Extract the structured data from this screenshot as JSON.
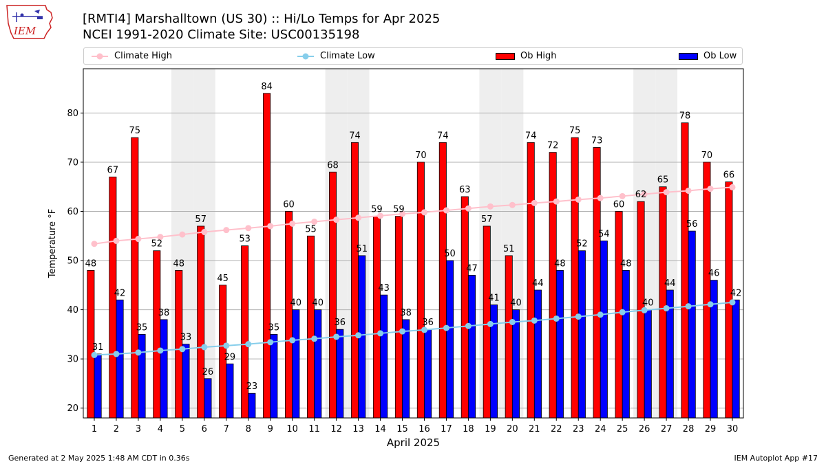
{
  "header": {
    "logo_text": "IEM",
    "title_line1": "[RMTI4] Marshalltown (US 30) :: Hi/Lo Temps for Apr 2025",
    "title_line2": "NCEI 1991-2020 Climate Site: USC00135198"
  },
  "footer": {
    "generated": "Generated at 2 May 2025 1:48 AM CDT in 0.36s",
    "app": "IEM Autoplot App #17"
  },
  "colors": {
    "ob_high": "#ff0000",
    "ob_low": "#0000ff",
    "climate_high": "#ffc0cb",
    "climate_low": "#87ceeb",
    "weekend_shade": "#eeeeee",
    "grid": "#b0b0b0"
  },
  "chart_data": {
    "type": "bar",
    "xlabel": "April 2025",
    "ylabel": "Temperature °F",
    "ylim": [
      18,
      89
    ],
    "yticks": [
      20,
      30,
      40,
      50,
      60,
      70,
      80
    ],
    "grid": "horizontal",
    "legend_position": "top",
    "categories": [
      "1",
      "2",
      "3",
      "4",
      "5",
      "6",
      "7",
      "8",
      "9",
      "10",
      "11",
      "12",
      "13",
      "14",
      "15",
      "16",
      "17",
      "18",
      "19",
      "20",
      "21",
      "22",
      "23",
      "24",
      "25",
      "26",
      "27",
      "28",
      "29",
      "30"
    ],
    "shaded_days": [
      5,
      6,
      12,
      13,
      19,
      20,
      26,
      27
    ],
    "series": [
      {
        "name": "Climate High",
        "kind": "line",
        "values": [
          53.4,
          54.0,
          54.4,
          54.8,
          55.3,
          55.8,
          56.2,
          56.6,
          57.0,
          57.5,
          57.9,
          58.3,
          58.7,
          59.1,
          59.5,
          59.8,
          60.2,
          60.6,
          61.0,
          61.3,
          61.7,
          62.0,
          62.4,
          62.7,
          63.1,
          63.5,
          63.9,
          64.2,
          64.6,
          64.9
        ]
      },
      {
        "name": "Climate Low",
        "kind": "line",
        "values": [
          30.8,
          31.0,
          31.3,
          31.7,
          32.0,
          32.4,
          32.7,
          33.0,
          33.4,
          33.8,
          34.1,
          34.5,
          34.8,
          35.2,
          35.6,
          35.9,
          36.3,
          36.7,
          37.1,
          37.5,
          37.8,
          38.2,
          38.6,
          39.0,
          39.5,
          39.9,
          40.3,
          40.7,
          41.1,
          41.5
        ]
      },
      {
        "name": "Ob High",
        "kind": "bar",
        "values": [
          48,
          67,
          75,
          52,
          48,
          57,
          45,
          53,
          84,
          60,
          55,
          68,
          74,
          59,
          59,
          70,
          74,
          63,
          57,
          51,
          74,
          72,
          75,
          73,
          60,
          62,
          65,
          78,
          70,
          66
        ]
      },
      {
        "name": "Ob Low",
        "kind": "bar",
        "values": [
          31,
          42,
          35,
          38,
          33,
          26,
          29,
          23,
          35,
          40,
          40,
          36,
          51,
          43,
          38,
          36,
          50,
          47,
          41,
          40,
          44,
          48,
          52,
          54,
          48,
          40,
          44,
          56,
          46,
          42
        ]
      }
    ]
  }
}
